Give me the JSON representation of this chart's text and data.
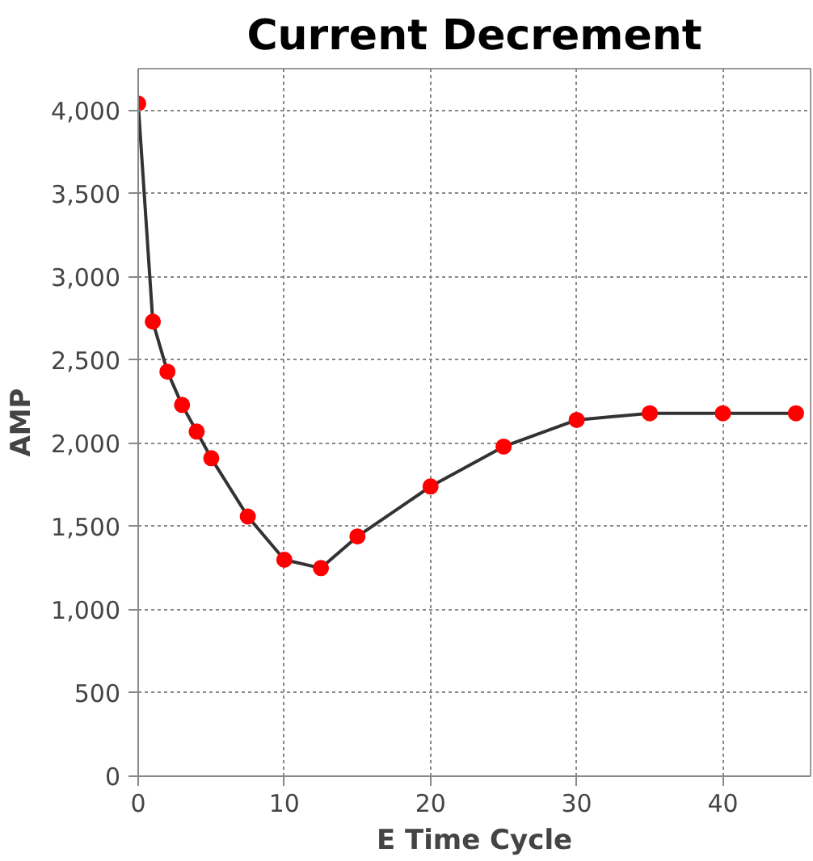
{
  "chart_data": {
    "type": "line",
    "title": "Current Decrement",
    "xlabel": "E Time Cycle",
    "ylabel": "AMP",
    "x": [
      0,
      1,
      2,
      3,
      4,
      5,
      7.5,
      10,
      12.5,
      15,
      20,
      25,
      30,
      35,
      40,
      45
    ],
    "series": [
      {
        "color": "#ff0000",
        "values": [
          4040,
          2730,
          2430,
          2230,
          2070,
          1910,
          1560,
          1300,
          1250,
          1440,
          1740,
          1980,
          2140,
          2180,
          2180,
          2180
        ]
      }
    ],
    "xlim": [
      0,
      46
    ],
    "ylim": [
      0,
      4250
    ],
    "xticks": [
      0,
      10,
      20,
      30,
      40
    ],
    "yticks": [
      {
        "value": 0,
        "label": "0"
      },
      {
        "value": 500,
        "label": "500"
      },
      {
        "value": 1000,
        "label": "1,000"
      },
      {
        "value": 1500,
        "label": "1,500"
      },
      {
        "value": 2000,
        "label": "2,000"
      },
      {
        "value": 2500,
        "label": "2,500"
      },
      {
        "value": 3000,
        "label": "3,000"
      },
      {
        "value": 3500,
        "label": "3,500"
      },
      {
        "value": 4000,
        "label": "4,000"
      }
    ],
    "grid": true,
    "marker": "circle",
    "line_style": "solid"
  }
}
